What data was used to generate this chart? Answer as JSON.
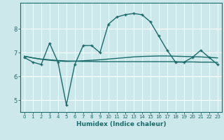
{
  "xlabel": "Humidex (Indice chaleur)",
  "ylabel": "",
  "bg_color": "#cce8ea",
  "grid_color": "#ffffff",
  "line_color": "#1a6b6b",
  "xlim": [
    -0.5,
    23.5
  ],
  "ylim": [
    4.5,
    9.1
  ],
  "yticks": [
    5,
    6,
    7,
    8
  ],
  "xticks": [
    0,
    1,
    2,
    3,
    4,
    5,
    6,
    7,
    8,
    9,
    10,
    11,
    12,
    13,
    14,
    15,
    16,
    17,
    18,
    19,
    20,
    21,
    22,
    23
  ],
  "series1_x": [
    0,
    1,
    2,
    3,
    4,
    5,
    6,
    7,
    8,
    9,
    10,
    11,
    12,
    13,
    14,
    15,
    16,
    17,
    18,
    19,
    20,
    21,
    22,
    23
  ],
  "series1_y": [
    6.8,
    6.6,
    6.5,
    7.4,
    6.6,
    4.8,
    6.5,
    7.3,
    7.3,
    7.0,
    8.2,
    8.5,
    8.6,
    8.65,
    8.6,
    8.3,
    7.7,
    7.1,
    6.6,
    6.6,
    6.8,
    7.1,
    6.8,
    6.5
  ],
  "series2_y": [
    6.85,
    6.78,
    6.73,
    6.7,
    6.67,
    6.65,
    6.64,
    6.63,
    6.63,
    6.62,
    6.62,
    6.62,
    6.62,
    6.62,
    6.62,
    6.62,
    6.62,
    6.62,
    6.62,
    6.61,
    6.61,
    6.6,
    6.6,
    6.59
  ],
  "series3_y": [
    6.85,
    6.78,
    6.72,
    6.68,
    6.65,
    6.63,
    6.64,
    6.66,
    6.68,
    6.7,
    6.73,
    6.76,
    6.79,
    6.82,
    6.84,
    6.85,
    6.86,
    6.86,
    6.85,
    6.84,
    6.83,
    6.82,
    6.8,
    6.78
  ]
}
